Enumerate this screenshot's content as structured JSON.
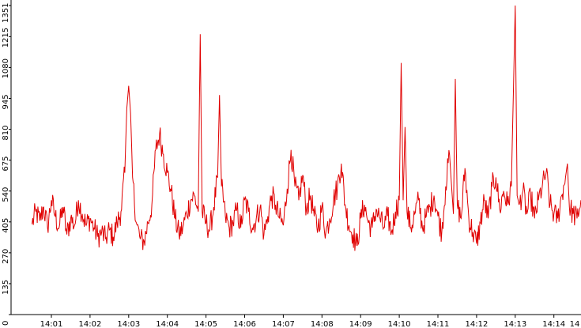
{
  "chart_data": {
    "type": "line",
    "title": "",
    "xlabel": "",
    "ylabel": "",
    "ylim": [
      0,
      1351
    ],
    "xlim_minutes": [
      0.5,
      14.0
    ],
    "y_ticks": [
      0,
      135,
      270,
      405,
      540,
      675,
      810,
      945,
      1080,
      1215,
      1351
    ],
    "x_ticks": [
      "14:01",
      "14:02",
      "14:03",
      "14:04",
      "14:05",
      "14:06",
      "14:07",
      "14:08",
      "14:09",
      "14:10",
      "14:11",
      "14:12",
      "14:13",
      "14:14",
      "14"
    ],
    "grid": false,
    "legend": "none",
    "series": [
      {
        "color": "#e00000",
        "x_start": "14:00:30",
        "x_end": "14:14:45",
        "points": [
          [
            0.5,
            395
          ],
          [
            0.6,
            450
          ],
          [
            0.7,
            410
          ],
          [
            0.8,
            470
          ],
          [
            0.9,
            380
          ],
          [
            1.0,
            500
          ],
          [
            1.1,
            430
          ],
          [
            1.2,
            380
          ],
          [
            1.3,
            470
          ],
          [
            1.4,
            350
          ],
          [
            1.5,
            420
          ],
          [
            1.6,
            390
          ],
          [
            1.7,
            500
          ],
          [
            1.8,
            440
          ],
          [
            1.9,
            390
          ],
          [
            2.0,
            420
          ],
          [
            2.1,
            380
          ],
          [
            2.2,
            340
          ],
          [
            2.3,
            360
          ],
          [
            2.4,
            330
          ],
          [
            2.5,
            370
          ],
          [
            2.6,
            340
          ],
          [
            2.7,
            400
          ],
          [
            2.8,
            450
          ],
          [
            2.9,
            620
          ],
          [
            2.95,
            900
          ],
          [
            3.0,
            1000
          ],
          [
            3.05,
            880
          ],
          [
            3.1,
            600
          ],
          [
            3.2,
            400
          ],
          [
            3.3,
            330
          ],
          [
            3.4,
            320
          ],
          [
            3.5,
            400
          ],
          [
            3.6,
            480
          ],
          [
            3.7,
            720
          ],
          [
            3.8,
            790
          ],
          [
            3.9,
            700
          ],
          [
            4.0,
            620
          ],
          [
            4.1,
            540
          ],
          [
            4.2,
            420
          ],
          [
            4.3,
            350
          ],
          [
            4.4,
            380
          ],
          [
            4.5,
            440
          ],
          [
            4.6,
            500
          ],
          [
            4.7,
            520
          ],
          [
            4.8,
            450
          ],
          [
            4.85,
            1226
          ],
          [
            4.9,
            450
          ],
          [
            5.0,
            400
          ],
          [
            5.1,
            370
          ],
          [
            5.2,
            470
          ],
          [
            5.3,
            600
          ],
          [
            5.35,
            960
          ],
          [
            5.4,
            560
          ],
          [
            5.5,
            430
          ],
          [
            5.6,
            380
          ],
          [
            5.7,
            400
          ],
          [
            5.8,
            460
          ],
          [
            5.9,
            380
          ],
          [
            6.0,
            500
          ],
          [
            6.1,
            450
          ],
          [
            6.2,
            380
          ],
          [
            6.3,
            420
          ],
          [
            6.4,
            470
          ],
          [
            6.5,
            350
          ],
          [
            6.6,
            430
          ],
          [
            6.7,
            520
          ],
          [
            6.8,
            480
          ],
          [
            6.9,
            420
          ],
          [
            7.0,
            390
          ],
          [
            7.1,
            550
          ],
          [
            7.2,
            720
          ],
          [
            7.3,
            560
          ],
          [
            7.4,
            500
          ],
          [
            7.5,
            610
          ],
          [
            7.6,
            460
          ],
          [
            7.7,
            520
          ],
          [
            7.8,
            430
          ],
          [
            7.9,
            380
          ],
          [
            8.0,
            470
          ],
          [
            8.1,
            360
          ],
          [
            8.2,
            420
          ],
          [
            8.3,
            500
          ],
          [
            8.4,
            560
          ],
          [
            8.5,
            660
          ],
          [
            8.6,
            480
          ],
          [
            8.7,
            390
          ],
          [
            8.8,
            350
          ],
          [
            8.9,
            300
          ],
          [
            9.0,
            420
          ],
          [
            9.1,
            480
          ],
          [
            9.2,
            400
          ],
          [
            9.3,
            380
          ],
          [
            9.4,
            460
          ],
          [
            9.5,
            420
          ],
          [
            9.6,
            380
          ],
          [
            9.7,
            430
          ],
          [
            9.8,
            360
          ],
          [
            9.9,
            450
          ],
          [
            10.0,
            500
          ],
          [
            10.05,
            1100
          ],
          [
            10.1,
            500
          ],
          [
            10.15,
            820
          ],
          [
            10.2,
            450
          ],
          [
            10.3,
            380
          ],
          [
            10.4,
            440
          ],
          [
            10.5,
            500
          ],
          [
            10.6,
            380
          ],
          [
            10.7,
            430
          ],
          [
            10.8,
            470
          ],
          [
            10.9,
            520
          ],
          [
            11.0,
            430
          ],
          [
            11.1,
            360
          ],
          [
            11.2,
            560
          ],
          [
            11.3,
            700
          ],
          [
            11.4,
            440
          ],
          [
            11.45,
            1030
          ],
          [
            11.5,
            480
          ],
          [
            11.6,
            420
          ],
          [
            11.7,
            640
          ],
          [
            11.8,
            420
          ],
          [
            11.9,
            360
          ],
          [
            12.0,
            310
          ],
          [
            12.1,
            400
          ],
          [
            12.2,
            500
          ],
          [
            12.3,
            420
          ],
          [
            12.4,
            560
          ],
          [
            12.5,
            600
          ],
          [
            12.6,
            460
          ],
          [
            12.7,
            540
          ],
          [
            12.8,
            480
          ],
          [
            12.9,
            560
          ],
          [
            12.95,
            960
          ],
          [
            13.0,
            1351
          ],
          [
            13.05,
            520
          ],
          [
            13.1,
            480
          ],
          [
            13.2,
            540
          ],
          [
            13.3,
            440
          ],
          [
            13.4,
            520
          ],
          [
            13.5,
            420
          ],
          [
            13.6,
            500
          ],
          [
            13.7,
            560
          ],
          [
            13.8,
            620
          ],
          [
            13.9,
            480
          ],
          [
            14.0,
            440
          ],
          [
            14.1,
            420
          ],
          [
            14.2,
            520
          ],
          [
            14.3,
            600
          ],
          [
            14.35,
            660
          ],
          [
            14.4,
            470
          ],
          [
            14.5,
            440
          ],
          [
            14.6,
            420
          ],
          [
            14.7,
            500
          ],
          [
            14.75,
            470
          ]
        ]
      }
    ]
  }
}
